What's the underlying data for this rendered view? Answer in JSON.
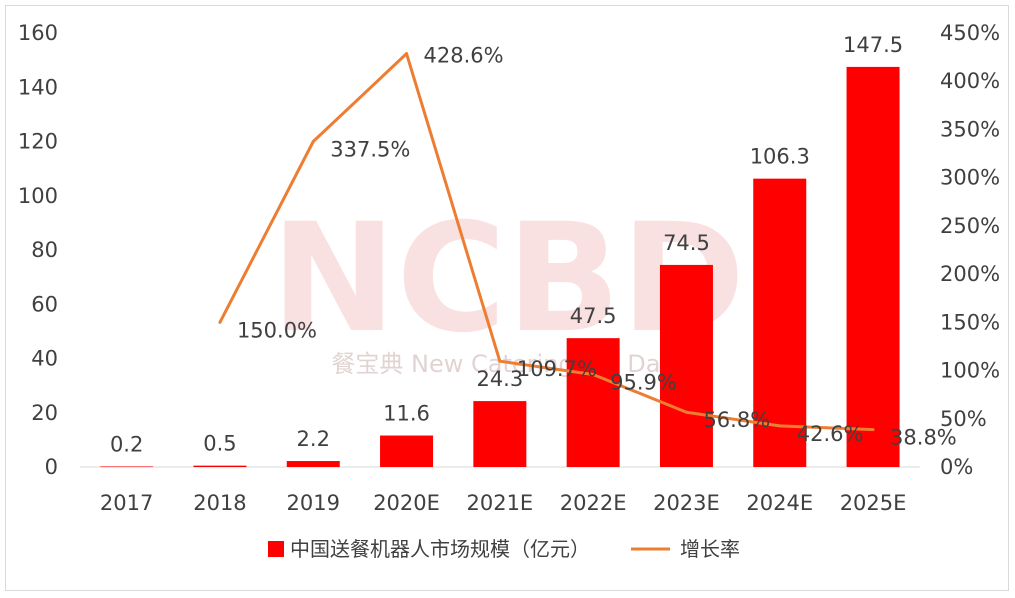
{
  "chart_data": {
    "type": "bar+line",
    "categories": [
      "2017",
      "2018",
      "2019",
      "2020E",
      "2021E",
      "2022E",
      "2023E",
      "2024E",
      "2025E"
    ],
    "series": [
      {
        "name": "中国送餐机器人市场规模（亿元）",
        "type": "bar",
        "axis": "left",
        "color": "#ff0000",
        "values": [
          0.2,
          0.5,
          2.2,
          11.6,
          24.3,
          47.5,
          74.5,
          106.3,
          147.5
        ],
        "labels": [
          "0.2",
          "0.5",
          "2.2",
          "11.6",
          "24.3",
          "47.5",
          "74.5",
          "106.3",
          "147.5"
        ]
      },
      {
        "name": "增长率",
        "type": "line",
        "axis": "right",
        "color": "#ed7d31",
        "values": [
          null,
          150.0,
          337.5,
          428.6,
          109.7,
          95.9,
          56.8,
          42.6,
          38.8
        ],
        "labels": [
          "",
          "150.0%",
          "337.5%",
          "428.6%",
          "109.7%",
          "95.9%",
          "56.8%",
          "42.6%",
          "38.8%"
        ]
      }
    ],
    "y_left": {
      "range": [
        0,
        160
      ],
      "ticks": [
        "0",
        "20",
        "40",
        "60",
        "80",
        "100",
        "120",
        "140",
        "160"
      ]
    },
    "y_right": {
      "range": [
        0,
        450
      ],
      "ticks": [
        "0%",
        "50%",
        "100%",
        "150%",
        "200%",
        "250%",
        "300%",
        "350%",
        "400%",
        "450%"
      ]
    },
    "grid": false,
    "legend_position": "bottom"
  },
  "watermark": {
    "logo": "NCBD",
    "text": "餐宝典 New Catering Big Data"
  }
}
